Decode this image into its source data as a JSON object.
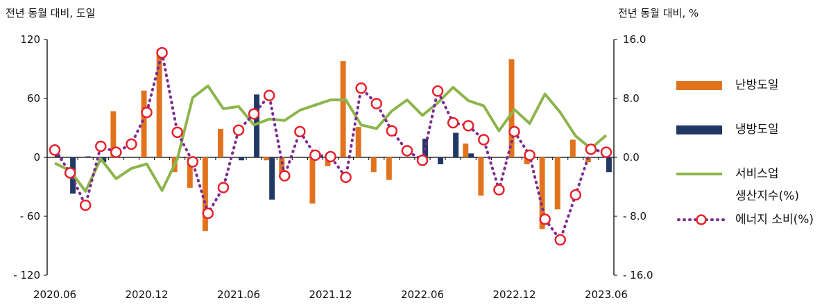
{
  "chart_data": {
    "type": "bar+line",
    "left_axis_title": "전년 동월 대비, 도일",
    "right_axis_title": "전년 동월 대비, %",
    "left_ylim": [
      -120,
      120
    ],
    "left_ticks": [
      "120",
      "60",
      "0",
      "- 60",
      "- 120"
    ],
    "right_ylim": [
      -16,
      16
    ],
    "right_ticks": [
      "16.0",
      "8.0",
      "0.0",
      "- 8.0",
      "- 16.0"
    ],
    "x_labels": [
      "2020.06",
      "2020.12",
      "2021.06",
      "2021.12",
      "2022.06",
      "2022.12",
      "2023.06"
    ],
    "months": [
      "2020.06",
      "2020.07",
      "2020.08",
      "2020.09",
      "2020.10",
      "2020.11",
      "2020.12",
      "2021.01",
      "2021.02",
      "2021.03",
      "2021.04",
      "2021.05",
      "2021.06",
      "2021.07",
      "2021.08",
      "2021.09",
      "2021.10",
      "2021.11",
      "2021.12",
      "2022.01",
      "2022.02",
      "2022.03",
      "2022.04",
      "2022.05",
      "2022.06",
      "2022.07",
      "2022.08",
      "2022.09",
      "2022.10",
      "2022.11",
      "2022.12",
      "2023.01",
      "2023.02",
      "2023.03",
      "2023.04",
      "2023.05",
      "2023.06"
    ],
    "series": [
      {
        "name": "난방도일",
        "type": "bar",
        "axis": "left",
        "color": "#E2731E",
        "values": [
          0,
          0,
          0,
          0,
          47,
          0,
          68,
          110,
          -15,
          -31,
          -75,
          29,
          0,
          0,
          -3,
          -16,
          0,
          -47,
          -9,
          98,
          31,
          -15,
          -23,
          0,
          0,
          0,
          0,
          14,
          -39,
          0,
          100,
          -7,
          -73,
          -53,
          18,
          -5,
          0
        ]
      },
      {
        "name": "냉방도일",
        "type": "bar",
        "axis": "left",
        "color": "#1F3864",
        "values": [
          3,
          -37,
          1,
          -5,
          0,
          0,
          0,
          0,
          0,
          0,
          0,
          0,
          -3,
          64,
          -43,
          0,
          0,
          0,
          0,
          0,
          0,
          0,
          0,
          0,
          19,
          -7,
          25,
          4,
          0,
          0,
          0,
          0,
          0,
          0,
          0,
          0,
          -15
        ]
      },
      {
        "name": "서비스업 생산지수(%)",
        "type": "line",
        "axis": "right",
        "color": "#8DB54B",
        "values": [
          -0.8,
          -1.8,
          -4.6,
          -0.2,
          -2.9,
          -1.5,
          -0.9,
          -4.5,
          -0.2,
          8.1,
          9.7,
          6.6,
          6.9,
          4.4,
          5.2,
          5.0,
          6.4,
          7.1,
          7.8,
          7.8,
          4.4,
          3.9,
          6.3,
          7.8,
          5.7,
          7.4,
          9.5,
          7.7,
          7.0,
          3.6,
          6.5,
          4.6,
          8.6,
          6.1,
          2.9,
          1.2,
          3.0
        ]
      },
      {
        "name": "에너지 소비(%)",
        "type": "line-marker",
        "axis": "right",
        "color": "#7B2C8E",
        "marker_color": "#E8202A",
        "values": [
          1.0,
          -2.1,
          -6.5,
          1.5,
          0.7,
          1.8,
          6.1,
          14.2,
          3.4,
          -0.6,
          -7.6,
          -4.1,
          3.7,
          5.9,
          8.4,
          -2.5,
          3.5,
          0.3,
          0.1,
          -2.7,
          9.4,
          7.3,
          3.6,
          0.9,
          -0.4,
          9.0,
          4.7,
          4.3,
          2.4,
          -4.4,
          3.5,
          0.3,
          -8.4,
          -11.2,
          -5.1,
          1.1,
          0.7
        ]
      }
    ],
    "legend": {
      "items": [
        "난방도일",
        "냉방도일",
        "서비스업",
        "생산지수(%)",
        "에너지 소비(%)"
      ],
      "position": "right"
    }
  }
}
